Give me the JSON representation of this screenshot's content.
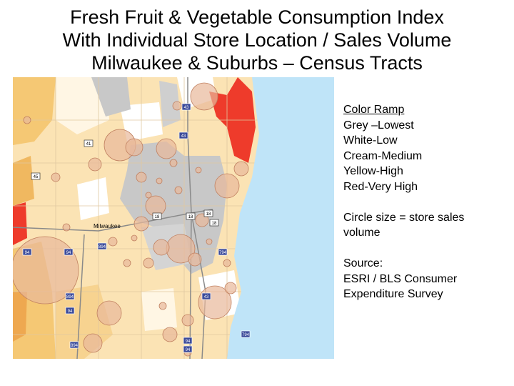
{
  "title": {
    "line1": "Fresh Fruit & Vegetable Consumption Index",
    "line2": "With Individual Store Location / Sales Volume",
    "line3": "Milwaukee & Suburbs – Census Tracts"
  },
  "legend": {
    "heading": "Color Ramp",
    "items": [
      "Grey –Lowest",
      "White-Low",
      "Cream-Medium",
      "Yellow-High",
      "Red-Very High"
    ],
    "size_note_1": "Circle size = store sales",
    "size_note_2": "volume",
    "source_1": "Source:",
    "source_2": "ESRI / BLS Consumer",
    "source_3": "Expenditure Survey"
  },
  "map": {
    "place_label": "Milwaukee",
    "highway_shields": [
      "43",
      "43",
      "41",
      "45",
      "18",
      "18",
      "18",
      "18",
      "94",
      "94",
      "894",
      "794",
      "894",
      "43",
      "94",
      "894",
      "794",
      "94",
      "94"
    ],
    "colors": {
      "lowest": "#c8c8c8",
      "low": "#ffffff",
      "medium": "#fbe3b4",
      "high": "#f5c874",
      "very_high": "#ee3b2b",
      "lake": "#bfe4f8",
      "store_circle": "#e8b89a"
    }
  }
}
